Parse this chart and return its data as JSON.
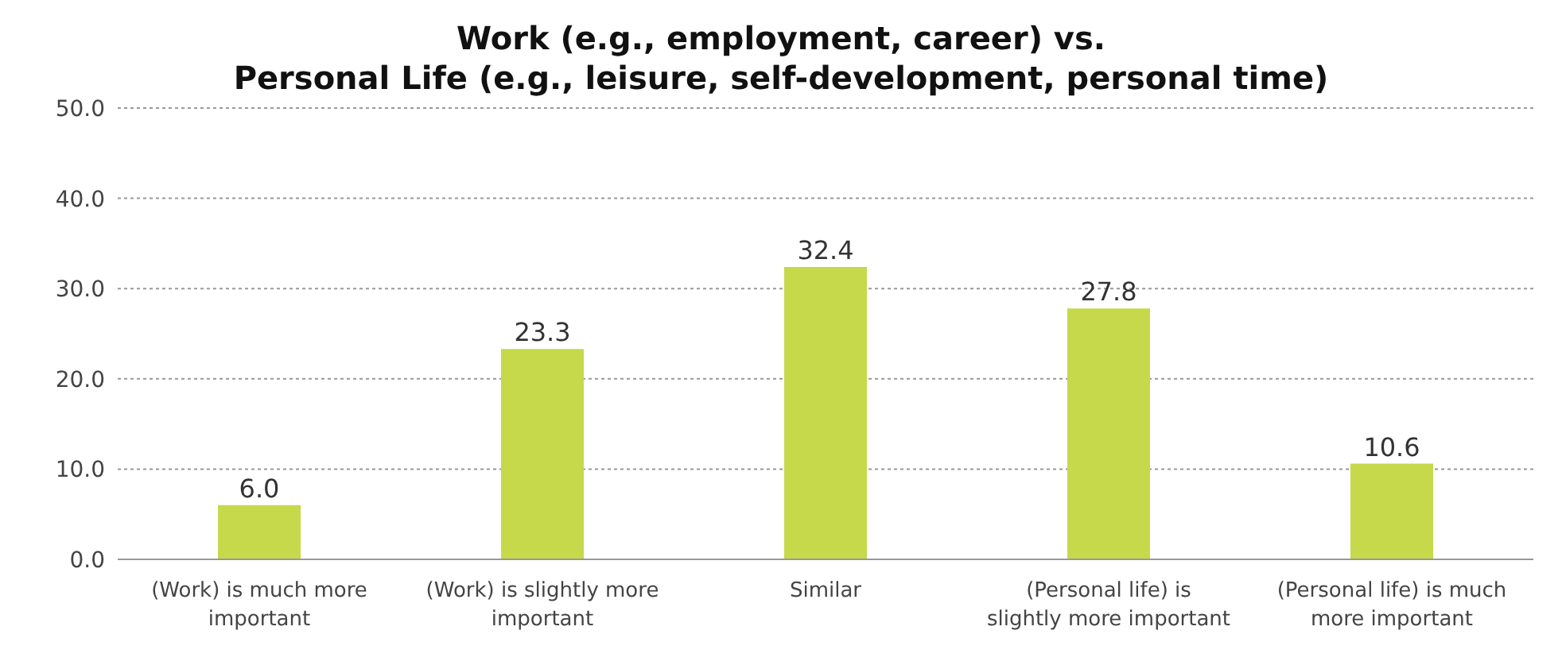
{
  "chart_data": {
    "type": "bar",
    "title": "Work (e.g., employment, career) vs.\nPersonal Life (e.g., leisure, self-development, personal time)",
    "categories": [
      "(Work) is much more important",
      "(Work) is slightly more important",
      "Similar",
      "(Personal life) is slightly more important",
      "(Personal life) is much more important"
    ],
    "values": [
      6.0,
      23.3,
      32.4,
      27.8,
      10.6
    ],
    "color": "#c5d94a",
    "value_labels": [
      "6.0",
      "23.3",
      "32.4",
      "27.8",
      "10.6"
    ],
    "ylim": [
      0,
      50
    ],
    "yticks": [
      {
        "value": 0,
        "label": "0.0"
      },
      {
        "value": 10,
        "label": "10.0"
      },
      {
        "value": 20,
        "label": "20.0"
      },
      {
        "value": 30,
        "label": "30.0"
      },
      {
        "value": 40,
        "label": "40.0"
      },
      {
        "value": 50,
        "label": "50.0"
      }
    ],
    "grid": "y"
  }
}
